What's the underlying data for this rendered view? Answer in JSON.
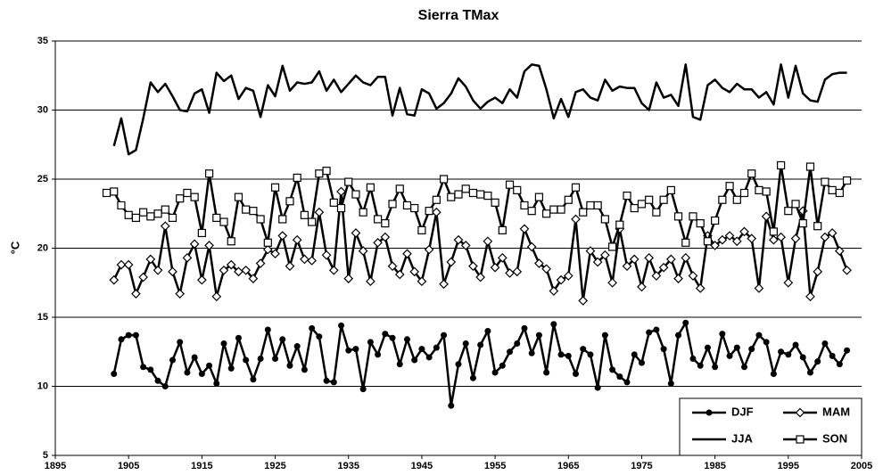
{
  "chart_data": {
    "type": "line",
    "title": "Sierra TMax",
    "y_label": "°C",
    "x": [
      1902,
      1903,
      1904,
      1905,
      1906,
      1907,
      1908,
      1909,
      1910,
      1911,
      1912,
      1913,
      1914,
      1915,
      1916,
      1917,
      1918,
      1919,
      1920,
      1921,
      1922,
      1923,
      1924,
      1925,
      1926,
      1927,
      1928,
      1929,
      1930,
      1931,
      1932,
      1933,
      1934,
      1935,
      1936,
      1937,
      1938,
      1939,
      1940,
      1941,
      1942,
      1943,
      1944,
      1945,
      1946,
      1947,
      1948,
      1949,
      1950,
      1951,
      1952,
      1953,
      1954,
      1955,
      1956,
      1957,
      1958,
      1959,
      1960,
      1961,
      1962,
      1963,
      1964,
      1965,
      1966,
      1967,
      1968,
      1969,
      1970,
      1971,
      1972,
      1973,
      1974,
      1975,
      1976,
      1977,
      1978,
      1979,
      1980,
      1981,
      1982,
      1983,
      1984,
      1985,
      1986,
      1987,
      1988,
      1989,
      1990,
      1991,
      1992,
      1993,
      1994,
      1995,
      1996,
      1997,
      1998,
      1999,
      2000,
      2001,
      2002,
      2003
    ],
    "series": [
      {
        "name": "DJF",
        "color": "#000000",
        "marker": "circle",
        "values": [
          null,
          10.9,
          13.4,
          13.7,
          13.7,
          11.4,
          11.2,
          10.4,
          10.0,
          11.9,
          13.2,
          11.0,
          12.1,
          10.9,
          11.5,
          10.2,
          13.1,
          11.3,
          13.5,
          11.9,
          10.5,
          12.0,
          14.1,
          12.0,
          13.4,
          11.5,
          12.9,
          11.2,
          14.2,
          13.6,
          10.4,
          10.3,
          14.4,
          12.6,
          12.7,
          9.8,
          13.2,
          12.3,
          13.8,
          13.5,
          11.6,
          13.4,
          11.9,
          12.7,
          12.1,
          12.8,
          13.7,
          8.6,
          11.6,
          13.1,
          10.6,
          13.0,
          14.0,
          11.0,
          11.5,
          12.5,
          13.1,
          14.2,
          12.4,
          13.7,
          11.0,
          14.5,
          12.3,
          12.2,
          10.9,
          12.7,
          12.3,
          9.9,
          13.7,
          11.2,
          10.7,
          10.3,
          12.3,
          11.7,
          13.9,
          14.1,
          12.7,
          10.2,
          13.7,
          14.6,
          12.0,
          11.5,
          12.8,
          11.4,
          13.8,
          12.2,
          12.8,
          11.4,
          12.7,
          13.7,
          13.2,
          10.9,
          12.5,
          12.3,
          13.0,
          12.1,
          11.0,
          11.8,
          13.1,
          12.2,
          11.6,
          12.6
        ]
      },
      {
        "name": "MAM",
        "color": "#000000",
        "marker": "diamond",
        "values": [
          null,
          17.7,
          18.8,
          18.8,
          16.7,
          17.9,
          19.2,
          18.4,
          21.6,
          18.3,
          16.7,
          19.3,
          20.3,
          17.7,
          20.2,
          16.5,
          18.4,
          18.8,
          18.3,
          18.4,
          17.8,
          18.9,
          19.9,
          19.6,
          20.9,
          18.7,
          20.6,
          19.2,
          19.1,
          22.6,
          19.5,
          18.4,
          24.1,
          17.8,
          21.1,
          19.8,
          17.6,
          20.4,
          20.8,
          18.7,
          18.1,
          19.6,
          18.3,
          17.6,
          19.9,
          22.6,
          17.4,
          19.0,
          20.6,
          20.2,
          18.7,
          17.9,
          20.5,
          18.6,
          19.3,
          18.2,
          18.3,
          21.4,
          20.1,
          18.9,
          18.5,
          16.9,
          17.7,
          18.0,
          22.1,
          16.2,
          19.8,
          19.0,
          19.5,
          17.5,
          21.4,
          18.7,
          19.2,
          17.2,
          19.3,
          18.0,
          18.6,
          19.2,
          17.8,
          19.3,
          18.0,
          17.1,
          20.9,
          20.2,
          20.6,
          20.9,
          20.5,
          21.2,
          20.7,
          17.1,
          22.3,
          20.6,
          20.8,
          17.5,
          20.7,
          22.7,
          16.5,
          18.3,
          20.8,
          21.1,
          19.8,
          18.4
        ]
      },
      {
        "name": "JJA",
        "color": "#000000",
        "marker": "none",
        "values": [
          null,
          27.4,
          29.4,
          26.8,
          27.1,
          29.4,
          32.0,
          31.3,
          31.9,
          31.0,
          30.0,
          29.9,
          31.2,
          31.5,
          29.8,
          32.7,
          32.1,
          32.5,
          30.8,
          31.6,
          31.4,
          29.5,
          31.8,
          31.0,
          33.2,
          31.4,
          32.0,
          31.9,
          32.0,
          32.8,
          31.4,
          32.2,
          31.3,
          31.9,
          32.5,
          32.0,
          31.8,
          32.4,
          32.4,
          29.6,
          31.6,
          29.7,
          29.6,
          31.5,
          31.2,
          30.1,
          30.5,
          31.2,
          32.3,
          31.7,
          30.7,
          30.1,
          30.6,
          30.9,
          30.5,
          31.5,
          30.9,
          32.8,
          33.3,
          33.2,
          31.5,
          29.4,
          30.8,
          29.5,
          31.3,
          31.5,
          30.9,
          30.7,
          32.2,
          31.4,
          31.7,
          31.6,
          31.6,
          30.5,
          30.0,
          32.0,
          30.9,
          31.1,
          30.3,
          33.3,
          29.5,
          29.3,
          31.8,
          32.2,
          31.6,
          31.3,
          31.9,
          31.5,
          31.5,
          30.9,
          31.3,
          30.4,
          33.3,
          30.9,
          33.2,
          31.2,
          30.7,
          30.6,
          32.2,
          32.6,
          32.7,
          32.7
        ]
      },
      {
        "name": "SON",
        "color": "#000000",
        "marker": "square",
        "values": [
          24.0,
          24.1,
          23.1,
          22.4,
          22.2,
          22.6,
          22.3,
          22.5,
          22.8,
          22.2,
          23.6,
          24.0,
          23.7,
          21.1,
          25.4,
          22.2,
          21.9,
          20.5,
          23.7,
          22.8,
          22.7,
          22.1,
          20.4,
          24.4,
          22.1,
          23.4,
          25.1,
          22.4,
          21.9,
          25.4,
          25.6,
          23.3,
          22.9,
          24.8,
          23.9,
          22.6,
          24.4,
          22.1,
          21.8,
          23.2,
          24.3,
          23.1,
          22.9,
          21.3,
          22.7,
          23.5,
          25.0,
          23.7,
          23.9,
          24.3,
          24.0,
          23.9,
          23.8,
          23.3,
          21.3,
          24.6,
          24.2,
          23.1,
          22.7,
          23.7,
          22.5,
          22.8,
          22.8,
          23.5,
          24.4,
          22.6,
          23.1,
          23.1,
          22.1,
          20.1,
          21.7,
          23.8,
          22.9,
          23.2,
          23.5,
          22.6,
          23.5,
          24.2,
          22.3,
          20.4,
          22.3,
          21.8,
          20.5,
          22.0,
          23.5,
          24.5,
          23.5,
          24.0,
          25.4,
          24.2,
          24.1,
          21.2,
          26.0,
          22.7,
          23.2,
          21.8,
          25.9,
          21.6,
          24.8,
          24.2,
          24.0,
          24.9
        ]
      }
    ],
    "xlim": [
      1895,
      2005
    ],
    "xticks": [
      1895,
      1905,
      1915,
      1925,
      1935,
      1945,
      1955,
      1965,
      1975,
      1985,
      1995,
      2005
    ],
    "ylim": [
      5,
      35
    ],
    "yticks": [
      5,
      10,
      15,
      20,
      25,
      30,
      35
    ],
    "grid": true,
    "legend": "bottom-right"
  }
}
